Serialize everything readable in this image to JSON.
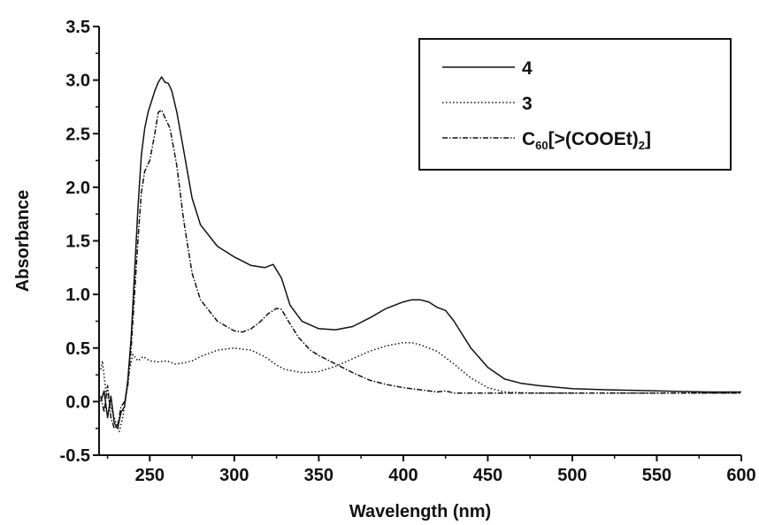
{
  "chart_data": {
    "type": "line",
    "title": "",
    "xlabel": "Wavelength (nm)",
    "ylabel": "Absorbance",
    "xlim": [
      220,
      600
    ],
    "ylim": [
      -0.5,
      3.5
    ],
    "xticks": [
      250,
      300,
      350,
      400,
      450,
      500,
      550,
      600
    ],
    "yticks": [
      -0.5,
      0.0,
      0.5,
      1.0,
      1.5,
      2.0,
      2.5,
      3.0,
      3.5
    ],
    "xtick_labels": [
      "250",
      "300",
      "350",
      "400",
      "450",
      "500",
      "550",
      "600"
    ],
    "ytick_labels": [
      "-0.5",
      "0.0",
      "0.5",
      "1.0",
      "1.5",
      "2.0",
      "2.5",
      "3.0",
      "3.5"
    ],
    "grid": false,
    "legend_position": "top-right",
    "legend": {
      "series_4": "4",
      "series_3": "3",
      "series_c60_main": "C",
      "series_c60_sub": "60",
      "series_c60_rest": "[>(COOEt)",
      "series_c60_sub2": "2",
      "series_c60_close": "]"
    },
    "series": [
      {
        "name": "4",
        "style": "solid",
        "color": "#111111",
        "points": [
          [
            221,
            0.0
          ],
          [
            223,
            0.1
          ],
          [
            225,
            -0.15
          ],
          [
            227,
            0.05
          ],
          [
            229,
            -0.2
          ],
          [
            231,
            -0.25
          ],
          [
            233,
            -0.1
          ],
          [
            235,
            -0.05
          ],
          [
            237,
            0.2
          ],
          [
            239,
            0.6
          ],
          [
            241,
            1.2
          ],
          [
            243,
            1.8
          ],
          [
            245,
            2.3
          ],
          [
            247,
            2.55
          ],
          [
            249,
            2.7
          ],
          [
            251,
            2.8
          ],
          [
            253,
            2.9
          ],
          [
            255,
            2.98
          ],
          [
            257,
            3.03
          ],
          [
            259,
            2.98
          ],
          [
            261,
            2.97
          ],
          [
            263,
            2.9
          ],
          [
            266,
            2.7
          ],
          [
            270,
            2.35
          ],
          [
            275,
            1.9
          ],
          [
            280,
            1.65
          ],
          [
            290,
            1.45
          ],
          [
            300,
            1.35
          ],
          [
            310,
            1.27
          ],
          [
            318,
            1.25
          ],
          [
            323,
            1.28
          ],
          [
            328,
            1.15
          ],
          [
            333,
            0.9
          ],
          [
            340,
            0.75
          ],
          [
            350,
            0.68
          ],
          [
            360,
            0.67
          ],
          [
            370,
            0.7
          ],
          [
            380,
            0.78
          ],
          [
            390,
            0.87
          ],
          [
            400,
            0.93
          ],
          [
            405,
            0.95
          ],
          [
            410,
            0.95
          ],
          [
            415,
            0.93
          ],
          [
            420,
            0.88
          ],
          [
            425,
            0.85
          ],
          [
            430,
            0.75
          ],
          [
            440,
            0.5
          ],
          [
            450,
            0.32
          ],
          [
            460,
            0.21
          ],
          [
            470,
            0.17
          ],
          [
            480,
            0.15
          ],
          [
            500,
            0.12
          ],
          [
            520,
            0.11
          ],
          [
            550,
            0.1
          ],
          [
            580,
            0.09
          ],
          [
            600,
            0.09
          ]
        ]
      },
      {
        "name": "3",
        "style": "dotted",
        "color": "#111111",
        "points": [
          [
            221,
            0.3
          ],
          [
            222,
            0.38
          ],
          [
            224,
            0.1
          ],
          [
            226,
            0.0
          ],
          [
            228,
            -0.1
          ],
          [
            230,
            -0.2
          ],
          [
            232,
            -0.28
          ],
          [
            234,
            -0.15
          ],
          [
            236,
            0.05
          ],
          [
            238,
            0.3
          ],
          [
            240,
            0.44
          ],
          [
            243,
            0.38
          ],
          [
            246,
            0.42
          ],
          [
            250,
            0.38
          ],
          [
            255,
            0.37
          ],
          [
            260,
            0.38
          ],
          [
            265,
            0.35
          ],
          [
            270,
            0.36
          ],
          [
            275,
            0.38
          ],
          [
            280,
            0.42
          ],
          [
            285,
            0.45
          ],
          [
            290,
            0.48
          ],
          [
            300,
            0.5
          ],
          [
            310,
            0.48
          ],
          [
            318,
            0.42
          ],
          [
            325,
            0.34
          ],
          [
            330,
            0.3
          ],
          [
            340,
            0.27
          ],
          [
            350,
            0.28
          ],
          [
            360,
            0.33
          ],
          [
            370,
            0.4
          ],
          [
            380,
            0.47
          ],
          [
            390,
            0.52
          ],
          [
            400,
            0.55
          ],
          [
            405,
            0.55
          ],
          [
            410,
            0.53
          ],
          [
            420,
            0.47
          ],
          [
            430,
            0.35
          ],
          [
            440,
            0.22
          ],
          [
            450,
            0.13
          ],
          [
            460,
            0.09
          ],
          [
            475,
            0.08
          ],
          [
            500,
            0.08
          ],
          [
            550,
            0.08
          ],
          [
            600,
            0.08
          ]
        ]
      },
      {
        "name": "C60[>(COOEt)2]",
        "style": "dashdot",
        "color": "#111111",
        "points": [
          [
            221,
            0.05
          ],
          [
            223,
            -0.1
          ],
          [
            225,
            0.15
          ],
          [
            227,
            -0.15
          ],
          [
            229,
            -0.25
          ],
          [
            231,
            -0.22
          ],
          [
            233,
            -0.05
          ],
          [
            235,
            0.0
          ],
          [
            237,
            0.15
          ],
          [
            239,
            0.5
          ],
          [
            241,
            1.0
          ],
          [
            243,
            1.5
          ],
          [
            245,
            1.95
          ],
          [
            247,
            2.15
          ],
          [
            250,
            2.25
          ],
          [
            253,
            2.5
          ],
          [
            255,
            2.7
          ],
          [
            257,
            2.72
          ],
          [
            259,
            2.65
          ],
          [
            262,
            2.55
          ],
          [
            266,
            2.2
          ],
          [
            270,
            1.7
          ],
          [
            275,
            1.2
          ],
          [
            280,
            0.95
          ],
          [
            290,
            0.75
          ],
          [
            300,
            0.66
          ],
          [
            305,
            0.65
          ],
          [
            310,
            0.68
          ],
          [
            315,
            0.74
          ],
          [
            320,
            0.82
          ],
          [
            325,
            0.87
          ],
          [
            328,
            0.86
          ],
          [
            332,
            0.75
          ],
          [
            338,
            0.6
          ],
          [
            345,
            0.48
          ],
          [
            350,
            0.43
          ],
          [
            360,
            0.35
          ],
          [
            370,
            0.27
          ],
          [
            380,
            0.2
          ],
          [
            390,
            0.16
          ],
          [
            400,
            0.13
          ],
          [
            410,
            0.11
          ],
          [
            420,
            0.09
          ],
          [
            425,
            0.1
          ],
          [
            430,
            0.08
          ],
          [
            450,
            0.08
          ],
          [
            500,
            0.08
          ],
          [
            550,
            0.08
          ],
          [
            600,
            0.08
          ]
        ]
      }
    ]
  }
}
